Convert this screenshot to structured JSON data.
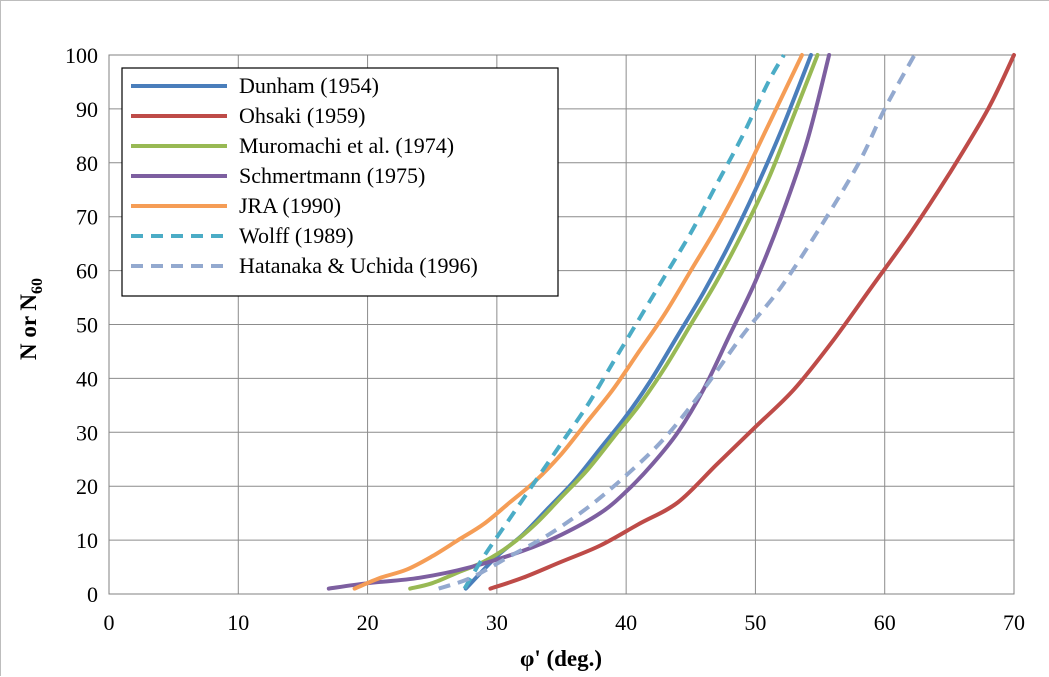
{
  "chart_data": {
    "type": "line",
    "title": "",
    "xlabel": "φ' (deg.)",
    "ylabel_main": "N or N",
    "ylabel_sub": "60",
    "xlim": [
      0,
      70
    ],
    "ylim": [
      0,
      100
    ],
    "x_ticks": [
      0,
      10,
      20,
      30,
      40,
      50,
      60,
      70
    ],
    "y_ticks": [
      0,
      10,
      20,
      30,
      40,
      50,
      60,
      70,
      80,
      90,
      100
    ],
    "x_tick_labels": [
      "0",
      "10",
      "20",
      "30",
      "40",
      "50",
      "60",
      "70"
    ],
    "y_tick_labels": [
      "0",
      "10",
      "20",
      "30",
      "40",
      "50",
      "60",
      "70",
      "80",
      "90",
      "100"
    ],
    "grid": true,
    "legend_position": "top-left",
    "series": [
      {
        "name": "Dunham (1954)",
        "color": "#4A7EBB",
        "dash": false,
        "x": [
          27.6,
          30,
          32,
          34,
          36,
          38,
          40,
          42,
          44,
          46,
          48,
          50,
          52,
          54.3
        ],
        "y": [
          1,
          7,
          11,
          16,
          21,
          27,
          33,
          40,
          48,
          56,
          65,
          75,
          86,
          100
        ]
      },
      {
        "name": "Ohsaki (1959)",
        "color": "#BE4B48",
        "dash": false,
        "x": [
          29.5,
          32,
          35,
          38,
          41,
          44,
          47,
          50,
          53,
          56,
          59,
          62,
          65,
          68,
          70
        ],
        "y": [
          1,
          3,
          6,
          9,
          13,
          17,
          24,
          31,
          38,
          47,
          57,
          67,
          78,
          90,
          100
        ]
      },
      {
        "name": "Muromachi et al. (1974)",
        "color": "#98B954",
        "dash": false,
        "x": [
          23.3,
          25,
          27,
          29,
          31,
          33,
          35,
          37,
          39,
          41,
          43,
          45,
          47,
          49,
          51,
          53,
          54.8
        ],
        "y": [
          1,
          2,
          4,
          6,
          9,
          13,
          18,
          23,
          29,
          35,
          42,
          50,
          58,
          67,
          77,
          89,
          100
        ]
      },
      {
        "name": "Schmertmann (1975)",
        "color": "#7D5FA0",
        "dash": false,
        "x": [
          17,
          20,
          24,
          28,
          32,
          35,
          38,
          40,
          42,
          44,
          46,
          48,
          50,
          52,
          54,
          55.7
        ],
        "y": [
          1,
          2,
          3,
          5,
          8,
          11,
          15,
          19,
          24,
          30,
          38,
          48,
          58,
          70,
          84,
          100
        ]
      },
      {
        "name": "JRA (1990)",
        "color": "#F59D56",
        "dash": false,
        "x": [
          19,
          21,
          23,
          25,
          27,
          29,
          31,
          33,
          35,
          37,
          39,
          41,
          43,
          45,
          47,
          49,
          51,
          53.6
        ],
        "y": [
          1,
          3,
          4.5,
          7,
          10,
          13,
          17,
          21,
          26,
          32,
          38,
          45,
          52,
          60,
          68,
          77,
          87,
          100
        ]
      },
      {
        "name": "Wolff (1989)",
        "color": "#4BACC6",
        "dash": true,
        "x": [
          27.5,
          29,
          31,
          33,
          35,
          37,
          39,
          41,
          43,
          45,
          47,
          49,
          51,
          52.2
        ],
        "y": [
          1,
          7,
          14,
          21,
          28,
          35,
          43,
          51,
          59,
          67,
          76,
          85,
          95,
          100
        ]
      },
      {
        "name": "Hatanaka & Uchida (1996)",
        "color": "#93A9CF",
        "dash": true,
        "x": [
          25.5,
          28,
          31,
          34,
          37,
          40,
          43,
          46,
          49,
          52,
          55,
          58,
          60,
          62.3
        ],
        "y": [
          1,
          3,
          7,
          11,
          16,
          22,
          29,
          38,
          48,
          57,
          68,
          80,
          90,
          100
        ]
      }
    ]
  }
}
